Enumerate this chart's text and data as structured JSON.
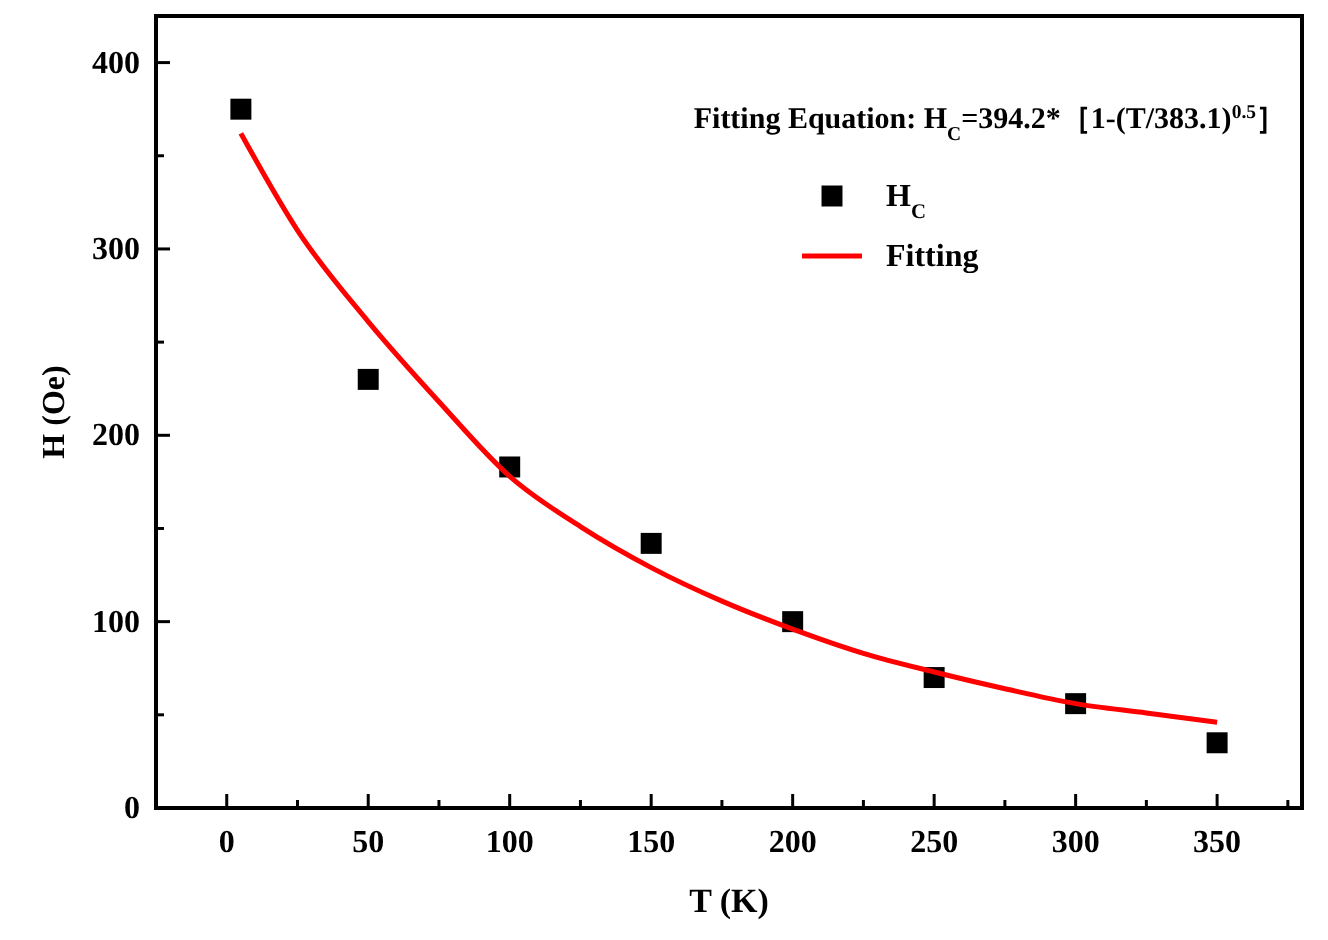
{
  "chart_data": {
    "type": "scatter",
    "xlabel": "T (K)",
    "ylabel": "H (Oe)",
    "xlim": [
      -25,
      380
    ],
    "ylim": [
      0,
      425
    ],
    "xticks": [
      {
        "value": -25,
        "label": null
      },
      0,
      {
        "value": 25,
        "label": null
      },
      50,
      {
        "value": 75,
        "label": null
      },
      100,
      {
        "value": 125,
        "label": null
      },
      150,
      {
        "value": 175,
        "label": null
      },
      200,
      {
        "value": 225,
        "label": null
      },
      250,
      {
        "value": 275,
        "label": null
      },
      300,
      {
        "value": 325,
        "label": null
      },
      350,
      {
        "value": 375,
        "label": null
      }
    ],
    "yticks": [
      0,
      {
        "value": 50,
        "label": null
      },
      100,
      {
        "value": 150,
        "label": null
      },
      200,
      {
        "value": 250,
        "label": null
      },
      300,
      {
        "value": 350,
        "label": null
      },
      400
    ],
    "grid": false,
    "legend": "top right",
    "annotations": [
      "Fitting Equation: H$_{C}$=394.2*［1-(T/383.1)$^{0.5}$］"
    ],
    "series": [
      {
        "name": "H$_{C}$",
        "marker": "square",
        "color": "#000000",
        "x": [
          5,
          50,
          100,
          150,
          200,
          250,
          300,
          350
        ],
        "values": [
          375,
          230,
          183,
          142,
          100,
          70,
          56,
          35
        ]
      },
      {
        "name": "Fitting",
        "type": "line",
        "marker": "none",
        "line_style": "solid",
        "color": "#ff0000",
        "x": [
          5,
          25,
          50,
          75,
          100,
          125,
          150,
          175,
          200,
          225,
          250,
          275,
          300,
          325,
          350
        ],
        "values": [
          362,
          310,
          261,
          218,
          178,
          151,
          129,
          111,
          96,
          83,
          73,
          64,
          56,
          51,
          46
        ]
      }
    ]
  }
}
